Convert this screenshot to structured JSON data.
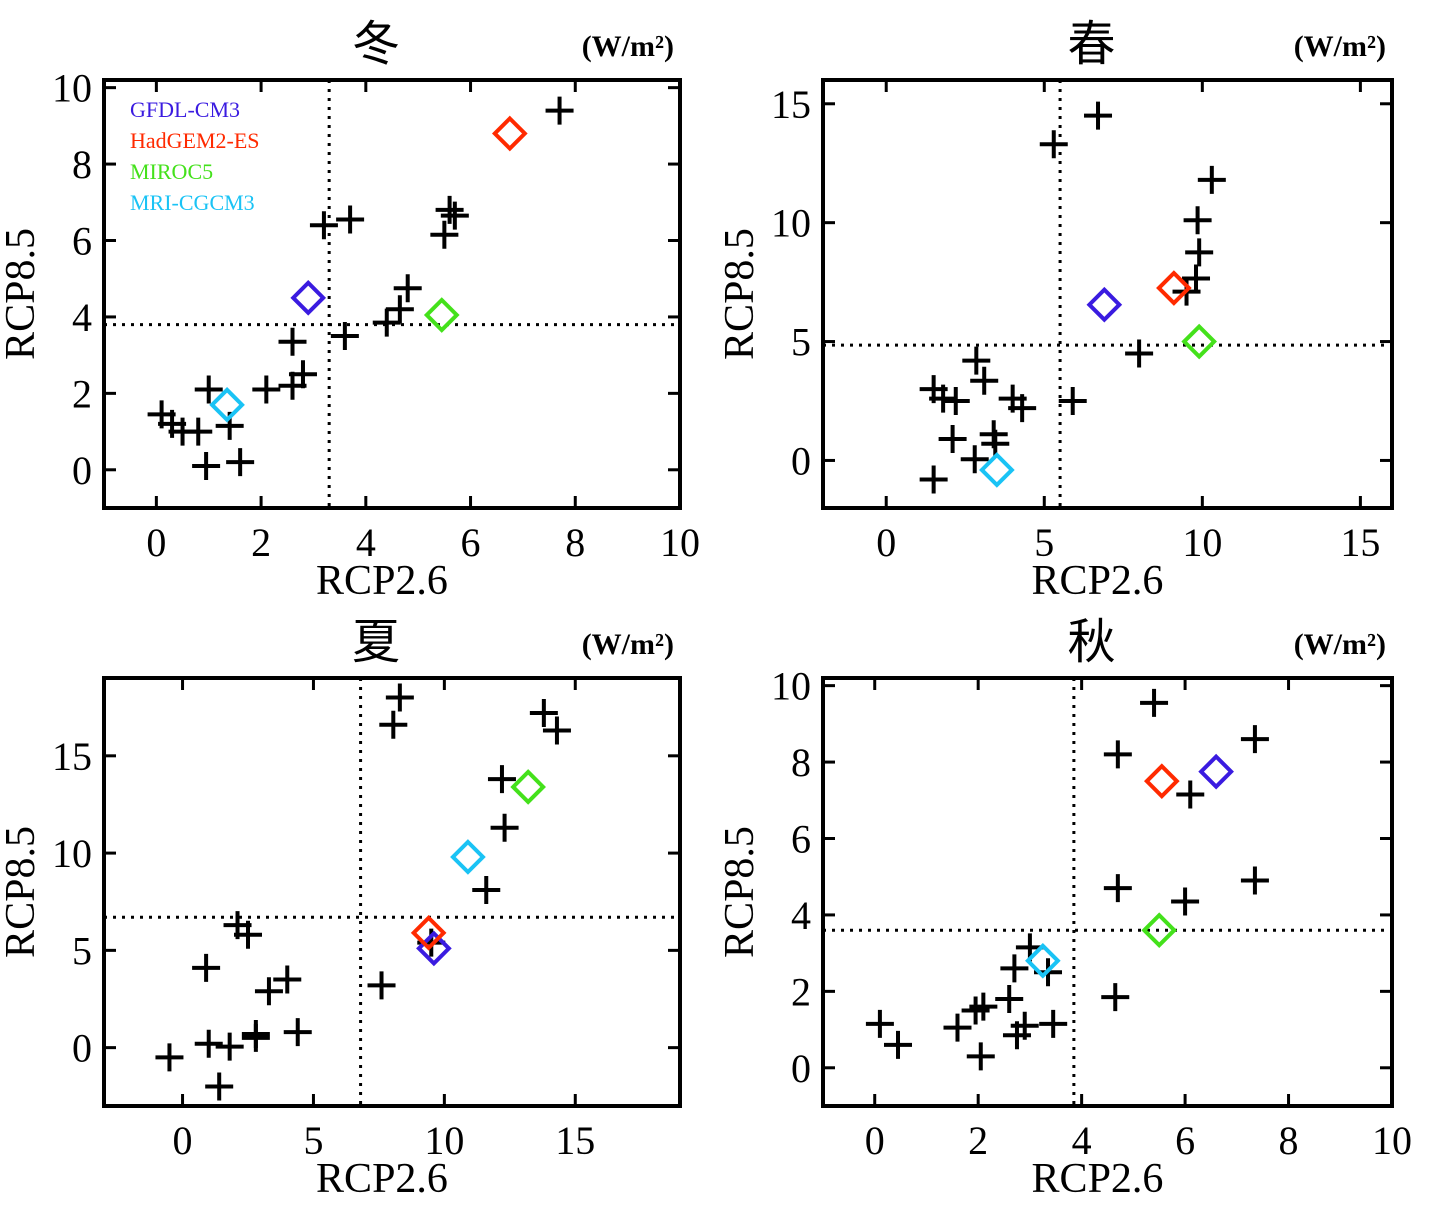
{
  "units": "(W/m²)",
  "legend": [
    {
      "name": "GFDL-CM3",
      "color": "#3a1be0"
    },
    {
      "name": "HadGEM2-ES",
      "color": "#ff2a00"
    },
    {
      "name": "MIROC5",
      "color": "#44e11b"
    },
    {
      "name": "MRI-CGCM3",
      "color": "#1ac3f5"
    }
  ],
  "chart_data": [
    {
      "type": "scatter",
      "title": "冬",
      "xlabel": "RCP2.6",
      "ylabel": "RCP8.5",
      "xlim": [
        -1,
        10
      ],
      "ylim": [
        -1,
        10.2
      ],
      "xticks": [
        0,
        2,
        4,
        6,
        8,
        10
      ],
      "yticks": [
        0,
        2,
        4,
        6,
        8,
        10
      ],
      "ref_x": 3.3,
      "ref_y": 3.8,
      "points": [
        [
          0.1,
          1.45
        ],
        [
          0.3,
          1.2
        ],
        [
          0.5,
          1.0
        ],
        [
          0.8,
          1.0
        ],
        [
          1.0,
          2.1
        ],
        [
          0.95,
          0.1
        ],
        [
          1.4,
          1.15
        ],
        [
          1.6,
          0.2
        ],
        [
          2.1,
          2.1
        ],
        [
          2.6,
          3.35
        ],
        [
          2.6,
          2.2
        ],
        [
          2.8,
          2.5
        ],
        [
          3.2,
          6.4
        ],
        [
          3.7,
          6.55
        ],
        [
          3.6,
          3.5
        ],
        [
          4.4,
          3.85
        ],
        [
          4.65,
          4.2
        ],
        [
          4.8,
          4.75
        ],
        [
          5.5,
          6.15
        ],
        [
          5.6,
          6.8
        ],
        [
          5.7,
          6.65
        ],
        [
          7.7,
          9.4
        ]
      ],
      "models": [
        {
          "name": "GFDL-CM3",
          "x": 2.9,
          "y": 4.5
        },
        {
          "name": "HadGEM2-ES",
          "x": 6.75,
          "y": 8.8
        },
        {
          "name": "MIROC5",
          "x": 5.45,
          "y": 4.05
        },
        {
          "name": "MRI-CGCM3",
          "x": 1.35,
          "y": 1.7
        }
      ]
    },
    {
      "type": "scatter",
      "title": "春",
      "xlabel": "RCP2.6",
      "ylabel": "RCP8.5",
      "xlim": [
        -2,
        16
      ],
      "ylim": [
        -2,
        16
      ],
      "xticks": [
        0,
        5,
        10,
        15
      ],
      "yticks": [
        0,
        5,
        10,
        15
      ],
      "ref_x": 5.5,
      "ref_y": 4.85,
      "points": [
        [
          1.5,
          3.0
        ],
        [
          1.8,
          2.6
        ],
        [
          2.2,
          2.5
        ],
        [
          2.1,
          0.9
        ],
        [
          1.5,
          -0.8
        ],
        [
          2.85,
          4.2
        ],
        [
          3.1,
          3.35
        ],
        [
          2.8,
          0.05
        ],
        [
          3.4,
          1.1
        ],
        [
          3.45,
          0.7
        ],
        [
          4.0,
          2.6
        ],
        [
          4.3,
          2.2
        ],
        [
          5.3,
          13.3
        ],
        [
          5.9,
          2.5
        ],
        [
          6.7,
          14.5
        ],
        [
          8.0,
          4.5
        ],
        [
          9.5,
          7.1
        ],
        [
          9.8,
          7.65
        ],
        [
          9.9,
          8.75
        ],
        [
          9.85,
          10.1
        ],
        [
          10.3,
          11.8
        ]
      ],
      "models": [
        {
          "name": "GFDL-CM3",
          "x": 6.9,
          "y": 6.55
        },
        {
          "name": "HadGEM2-ES",
          "x": 9.1,
          "y": 7.25
        },
        {
          "name": "MIROC5",
          "x": 9.9,
          "y": 5.0
        },
        {
          "name": "MRI-CGCM3",
          "x": 3.5,
          "y": -0.4
        }
      ]
    },
    {
      "type": "scatter",
      "title": "夏",
      "xlabel": "RCP2.6",
      "ylabel": "RCP8.5",
      "xlim": [
        -3,
        19
      ],
      "ylim": [
        -3,
        19
      ],
      "xticks": [
        0,
        5,
        10,
        15
      ],
      "yticks": [
        0,
        5,
        10,
        15
      ],
      "ref_x": 6.8,
      "ref_y": 6.7,
      "points": [
        [
          -0.5,
          -0.5
        ],
        [
          0.9,
          4.1
        ],
        [
          1.0,
          0.2
        ],
        [
          1.4,
          -2.0
        ],
        [
          1.8,
          0.05
        ],
        [
          2.1,
          6.3
        ],
        [
          2.5,
          5.8
        ],
        [
          2.8,
          0.5
        ],
        [
          2.8,
          0.7
        ],
        [
          3.3,
          2.9
        ],
        [
          4.0,
          3.5
        ],
        [
          4.4,
          0.8
        ],
        [
          7.6,
          3.2
        ],
        [
          8.05,
          16.6
        ],
        [
          8.3,
          18.0
        ],
        [
          9.5,
          5.4
        ],
        [
          11.6,
          8.1
        ],
        [
          12.2,
          13.8
        ],
        [
          12.3,
          11.3
        ],
        [
          13.8,
          17.2
        ],
        [
          14.3,
          16.3
        ]
      ],
      "models": [
        {
          "name": "GFDL-CM3",
          "x": 9.6,
          "y": 5.1
        },
        {
          "name": "HadGEM2-ES",
          "x": 9.4,
          "y": 5.9
        },
        {
          "name": "MIROC5",
          "x": 13.2,
          "y": 13.4
        },
        {
          "name": "MRI-CGCM3",
          "x": 10.9,
          "y": 9.8
        }
      ]
    },
    {
      "type": "scatter",
      "title": "秋",
      "xlabel": "RCP2.6",
      "ylabel": "RCP8.5",
      "xlim": [
        -1,
        10
      ],
      "ylim": [
        -1,
        10.2
      ],
      "xticks": [
        0,
        2,
        4,
        6,
        8,
        10
      ],
      "yticks": [
        0,
        2,
        4,
        6,
        8,
        10
      ],
      "ref_x": 3.85,
      "ref_y": 3.6,
      "points": [
        [
          0.1,
          1.15
        ],
        [
          0.45,
          0.6
        ],
        [
          1.6,
          1.05
        ],
        [
          1.95,
          1.5
        ],
        [
          2.1,
          1.6
        ],
        [
          2.05,
          0.3
        ],
        [
          2.6,
          1.8
        ],
        [
          2.7,
          2.6
        ],
        [
          2.75,
          0.85
        ],
        [
          2.9,
          1.1
        ],
        [
          3.0,
          3.15
        ],
        [
          3.35,
          2.5
        ],
        [
          3.45,
          1.15
        ],
        [
          4.7,
          8.2
        ],
        [
          4.7,
          4.7
        ],
        [
          4.65,
          1.85
        ],
        [
          5.4,
          9.55
        ],
        [
          6.1,
          7.15
        ],
        [
          6.0,
          4.35
        ],
        [
          7.35,
          8.6
        ],
        [
          7.35,
          4.9
        ]
      ],
      "models": [
        {
          "name": "GFDL-CM3",
          "x": 6.6,
          "y": 7.75
        },
        {
          "name": "HadGEM2-ES",
          "x": 5.55,
          "y": 7.5
        },
        {
          "name": "MIROC5",
          "x": 5.5,
          "y": 3.6
        },
        {
          "name": "MRI-CGCM3",
          "x": 3.25,
          "y": 2.8
        }
      ]
    }
  ]
}
